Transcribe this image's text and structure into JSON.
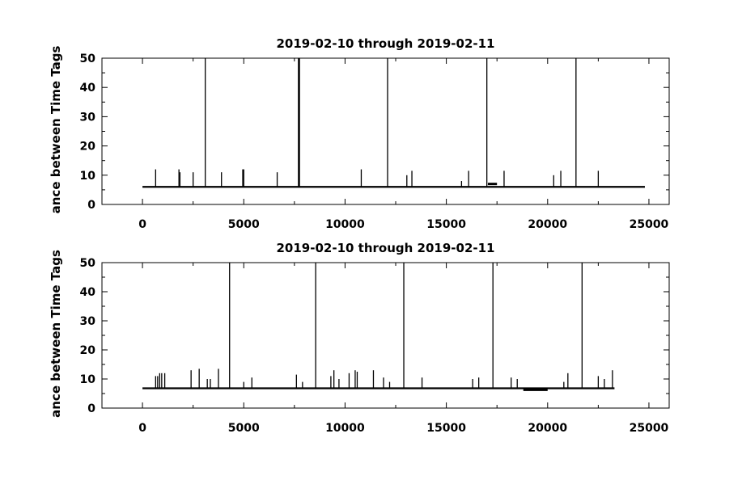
{
  "chart_data": [
    {
      "type": "line",
      "title": "2019-02-10 through 2019-02-11",
      "xlabel": "",
      "ylabel": "ance between Time Tags",
      "xlim": [
        -2000,
        26000
      ],
      "ylim": [
        0,
        50
      ],
      "xticks": [
        0,
        5000,
        10000,
        15000,
        20000,
        25000
      ],
      "xtick_labels": [
        "0",
        "5000",
        "10000",
        "15000",
        "20000",
        "25000"
      ],
      "yticks": [
        0,
        10,
        20,
        30,
        40,
        50
      ],
      "ytick_labels": [
        "0",
        "10",
        "20",
        "30",
        "40",
        "50"
      ],
      "grid": false,
      "baseline": {
        "x_start": 0,
        "x_end": 24800,
        "y": 6
      },
      "segments": [
        [
          17050,
          17500,
          7
        ]
      ],
      "spikes": [
        [
          650,
          12
        ],
        [
          1800,
          12
        ],
        [
          1850,
          11
        ],
        [
          2500,
          11
        ],
        [
          3100,
          50
        ],
        [
          3900,
          11
        ],
        [
          4950,
          12
        ],
        [
          5000,
          12
        ],
        [
          6650,
          11
        ],
        [
          7700,
          50
        ],
        [
          7720,
          50
        ],
        [
          7750,
          50
        ],
        [
          10800,
          12
        ],
        [
          12100,
          50
        ],
        [
          13050,
          10
        ],
        [
          13300,
          11.5
        ],
        [
          15750,
          8
        ],
        [
          16100,
          11.5
        ],
        [
          17000,
          50
        ],
        [
          17850,
          11.5
        ],
        [
          20300,
          10
        ],
        [
          20650,
          11.5
        ],
        [
          21400,
          50
        ],
        [
          22500,
          11.5
        ]
      ]
    },
    {
      "type": "line",
      "title": "2019-02-10 through 2019-02-11",
      "xlabel": "",
      "ylabel": "ance between Time Tags",
      "xlim": [
        -2000,
        26000
      ],
      "ylim": [
        0,
        50
      ],
      "xticks": [
        0,
        5000,
        10000,
        15000,
        20000,
        25000
      ],
      "xtick_labels": [
        "0",
        "5000",
        "10000",
        "15000",
        "20000",
        "25000"
      ],
      "yticks": [
        0,
        10,
        20,
        30,
        40,
        50
      ],
      "ytick_labels": [
        "0",
        "10",
        "20",
        "30",
        "40",
        "50"
      ],
      "grid": false,
      "baseline": {
        "x_start": 0,
        "x_end": 23300,
        "y": 6.8
      },
      "segments": [
        [
          18800,
          20000,
          6.3
        ]
      ],
      "spikes": [
        [
          650,
          11
        ],
        [
          750,
          11
        ],
        [
          850,
          12
        ],
        [
          950,
          12
        ],
        [
          1100,
          12
        ],
        [
          2400,
          13
        ],
        [
          2800,
          13.5
        ],
        [
          3200,
          10
        ],
        [
          3350,
          10
        ],
        [
          3750,
          13.5
        ],
        [
          4300,
          50
        ],
        [
          5000,
          9
        ],
        [
          5400,
          10.5
        ],
        [
          7600,
          11.5
        ],
        [
          7900,
          9
        ],
        [
          8550,
          50
        ],
        [
          9300,
          11
        ],
        [
          9450,
          13
        ],
        [
          9700,
          10
        ],
        [
          10200,
          12
        ],
        [
          10500,
          13
        ],
        [
          10600,
          12.5
        ],
        [
          11400,
          13
        ],
        [
          11900,
          10.5
        ],
        [
          12200,
          9
        ],
        [
          12900,
          50
        ],
        [
          13800,
          10.5
        ],
        [
          16300,
          10
        ],
        [
          16600,
          10.5
        ],
        [
          17300,
          50
        ],
        [
          18200,
          10.5
        ],
        [
          18500,
          10
        ],
        [
          20800,
          9
        ],
        [
          21000,
          12
        ],
        [
          21700,
          50
        ],
        [
          22500,
          11
        ],
        [
          22800,
          10
        ],
        [
          23200,
          13
        ]
      ]
    }
  ]
}
